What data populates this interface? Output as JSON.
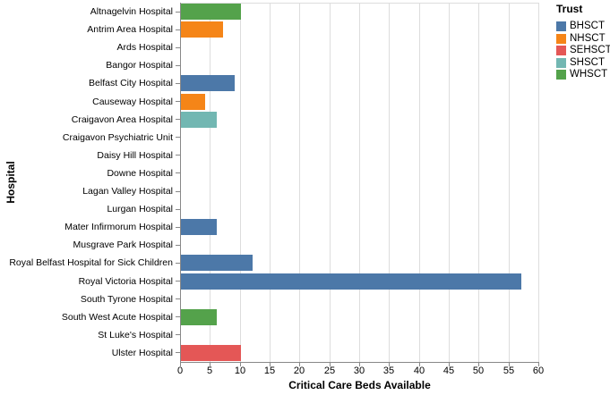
{
  "chart_data": {
    "type": "bar",
    "orientation": "horizontal",
    "xlabel": "Critical Care Beds Available",
    "ylabel": "Hospital",
    "xlim": [
      0,
      60
    ],
    "x_ticks": [
      0,
      5,
      10,
      15,
      20,
      25,
      30,
      35,
      40,
      45,
      50,
      55,
      60
    ],
    "grid": true,
    "categories": [
      "Altnagelvin Hospital",
      "Antrim Area Hospital",
      "Ards Hospital",
      "Bangor Hospital",
      "Belfast City Hospital",
      "Causeway Hospital",
      "Craigavon Area Hospital",
      "Craigavon Psychiatric Unit",
      "Daisy Hill Hospital",
      "Downe Hospital",
      "Lagan Valley Hospital",
      "Lurgan Hospital",
      "Mater Infirmorum Hospital",
      "Musgrave Park Hospital",
      "Royal Belfast Hospital for Sick Children",
      "Royal Victoria Hospital",
      "South Tyrone Hospital",
      "South West Acute Hospital",
      "St Luke's Hospital",
      "Ulster Hospital"
    ],
    "values": [
      10,
      7,
      0,
      0,
      9,
      4,
      6,
      0,
      0,
      0,
      0,
      0,
      6,
      0,
      12,
      57,
      0,
      6,
      0,
      10
    ],
    "trusts": [
      "WHSCT",
      "NHSCT",
      null,
      null,
      "BHSCT",
      "NHSCT",
      "SHSCT",
      null,
      null,
      null,
      null,
      null,
      "BHSCT",
      null,
      "BHSCT",
      "BHSCT",
      null,
      "WHSCT",
      null,
      "SEHSCT"
    ],
    "legend": {
      "title": "Trust",
      "position": "right-top",
      "entries": [
        {
          "label": "BHSCT",
          "color": "#4c78a8"
        },
        {
          "label": "NHSCT",
          "color": "#f58518"
        },
        {
          "label": "SEHSCT",
          "color": "#e45756"
        },
        {
          "label": "SHSCT",
          "color": "#72b7b2"
        },
        {
          "label": "WHSCT",
          "color": "#54a24b"
        }
      ]
    },
    "colors": {
      "grid": "#dddddd",
      "axis_domain": "#888888",
      "text": "#000000",
      "background": "#ffffff"
    }
  }
}
